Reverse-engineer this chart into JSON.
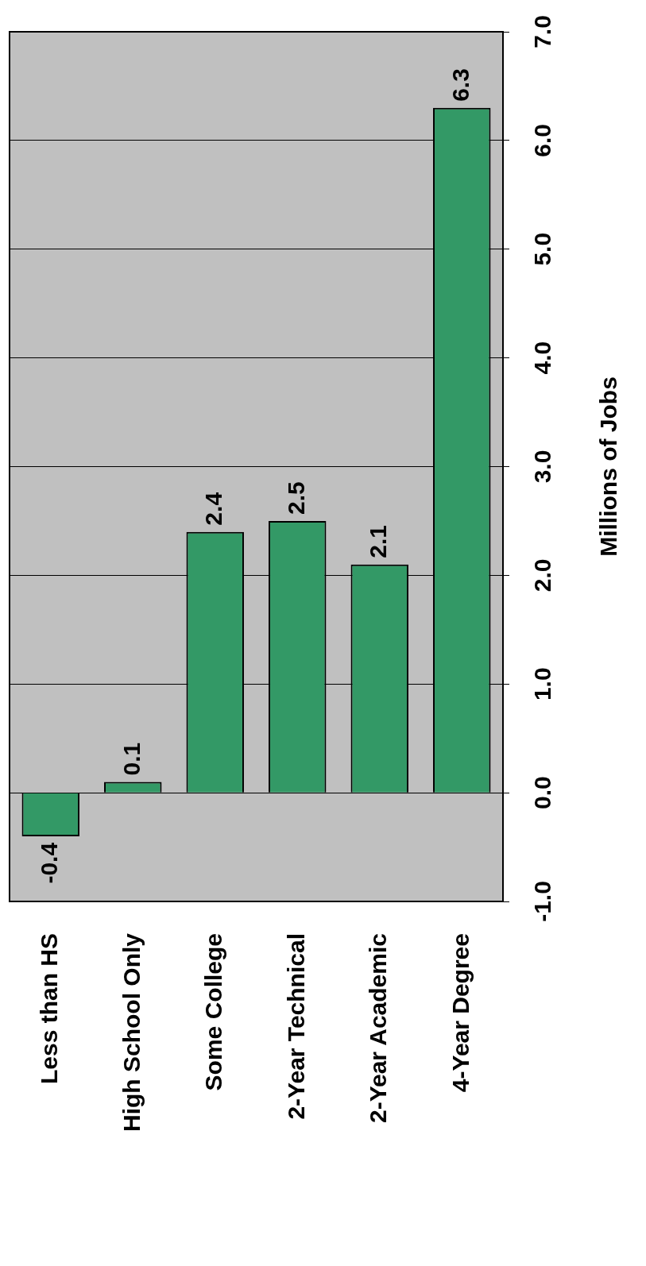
{
  "chart_data": {
    "type": "bar",
    "ylabel": "Millions of Jobs",
    "categories": [
      "Less than HS",
      "High School Only",
      "Some College",
      "2-Year Technical",
      "2-Year Academic",
      "4-Year Degree"
    ],
    "values": [
      -0.4,
      0.1,
      2.4,
      2.5,
      2.1,
      6.3
    ],
    "color": "#339966",
    "data_labels": true,
    "ylim": [
      -1,
      7
    ],
    "yticks": [
      {
        "value": -1,
        "label": "-1.0"
      },
      {
        "value": 0,
        "label": "0.0"
      },
      {
        "value": 1,
        "label": "1.0"
      },
      {
        "value": 2,
        "label": "2.0"
      },
      {
        "value": 3,
        "label": "3.0"
      },
      {
        "value": 4,
        "label": "4.0"
      },
      {
        "value": 5,
        "label": "5.0"
      },
      {
        "value": 6,
        "label": "6.0"
      },
      {
        "value": 7,
        "label": "7.0"
      }
    ],
    "grid": "y",
    "legend": false
  }
}
